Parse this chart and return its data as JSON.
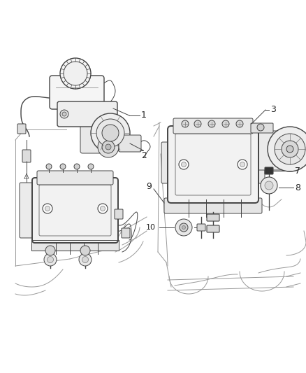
{
  "bg_color": "#ffffff",
  "lc": "#444444",
  "lc_light": "#999999",
  "lc_mid": "#777777",
  "fig_width": 4.38,
  "fig_height": 5.33,
  "dpi": 100
}
